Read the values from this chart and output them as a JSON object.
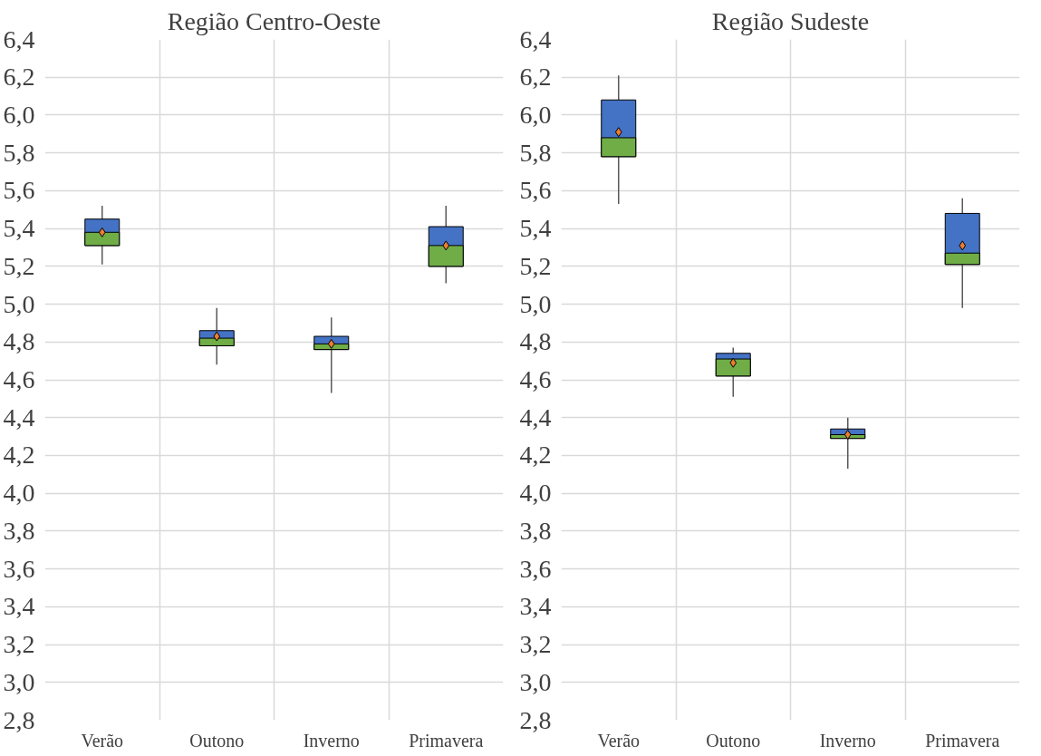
{
  "chart_data": [
    {
      "type": "box",
      "title": "Região Centro-Oeste",
      "categories": [
        "Verão",
        "Outono",
        "Inverno",
        "Primavera"
      ],
      "series": [
        {
          "color": "#4472c4",
          "boxes": [
            {
              "low": 5.21,
              "q1": 5.31,
              "median": 5.38,
              "q3": 5.45,
              "high": 5.52
            },
            {
              "low": 4.68,
              "q1": 4.78,
              "median": 4.82,
              "q3": 4.86,
              "high": 4.98
            },
            {
              "low": 4.53,
              "q1": 4.76,
              "median": 4.79,
              "q3": 4.83,
              "high": 4.93
            },
            {
              "low": 5.11,
              "q1": 5.2,
              "median": 5.31,
              "q3": 5.41,
              "high": 5.52
            }
          ]
        },
        {
          "type": "scatter",
          "color": "#ed7d31",
          "x": [
            "Verão",
            "Outono",
            "Inverno",
            "Primavera"
          ],
          "values": [
            5.38,
            4.83,
            4.79,
            5.31
          ]
        }
      ],
      "ylim": [
        2.8,
        6.4
      ],
      "yticks": [
        {
          "value": 2.8,
          "label": "2,8"
        },
        {
          "value": 3.0,
          "label": "3,0"
        },
        {
          "value": 3.2,
          "label": "3,2"
        },
        {
          "value": 3.4,
          "label": "3,4"
        },
        {
          "value": 3.6,
          "label": "3,6"
        },
        {
          "value": 3.8,
          "label": "3,8"
        },
        {
          "value": 4.0,
          "label": "4,0"
        },
        {
          "value": 4.2,
          "label": "4,2"
        },
        {
          "value": 4.4,
          "label": "4,4"
        },
        {
          "value": 4.6,
          "label": "4,6"
        },
        {
          "value": 4.8,
          "label": "4,8"
        },
        {
          "value": 5.0,
          "label": "5,0"
        },
        {
          "value": 5.2,
          "label": "5,2"
        },
        {
          "value": 5.4,
          "label": "5,4"
        },
        {
          "value": 5.6,
          "label": "5,6"
        },
        {
          "value": 5.8,
          "label": "5,8"
        },
        {
          "value": 6.0,
          "label": "6,0"
        },
        {
          "value": 6.2,
          "label": "6,2"
        },
        {
          "value": 6.4,
          "label": "6,4"
        }
      ],
      "grid": true,
      "marker": "diamond"
    },
    {
      "type": "box",
      "title": "Região Sudeste",
      "categories": [
        "Verão",
        "Outono",
        "Inverno",
        "Primavera"
      ],
      "series": [
        {
          "color": "#4472c4",
          "boxes": [
            {
              "low": 5.53,
              "q1": 5.78,
              "median": 5.88,
              "q3": 6.08,
              "high": 6.21
            },
            {
              "low": 4.51,
              "q1": 4.62,
              "median": 4.71,
              "q3": 4.74,
              "high": 4.77
            },
            {
              "low": 4.13,
              "q1": 4.29,
              "median": 4.31,
              "q3": 4.34,
              "high": 4.4
            },
            {
              "low": 4.98,
              "q1": 5.21,
              "median": 5.27,
              "q3": 5.48,
              "high": 5.56
            }
          ]
        },
        {
          "type": "scatter",
          "color": "#ed7d31",
          "x": [
            "Verão",
            "Outono",
            "Inverno",
            "Primavera"
          ],
          "values": [
            5.91,
            4.69,
            4.31,
            5.31
          ]
        }
      ],
      "ylim": [
        2.8,
        6.4
      ],
      "yticks": [
        {
          "value": 2.8,
          "label": "2,8"
        },
        {
          "value": 3.0,
          "label": "3,0"
        },
        {
          "value": 3.2,
          "label": "3,2"
        },
        {
          "value": 3.4,
          "label": "3,4"
        },
        {
          "value": 3.6,
          "label": "3,6"
        },
        {
          "value": 3.8,
          "label": "3,8"
        },
        {
          "value": 4.0,
          "label": "4,0"
        },
        {
          "value": 4.2,
          "label": "4,2"
        },
        {
          "value": 4.4,
          "label": "4,4"
        },
        {
          "value": 4.6,
          "label": "4,6"
        },
        {
          "value": 4.8,
          "label": "4,8"
        },
        {
          "value": 5.0,
          "label": "5,0"
        },
        {
          "value": 5.2,
          "label": "5,2"
        },
        {
          "value": 5.4,
          "label": "5,4"
        },
        {
          "value": 5.6,
          "label": "5,6"
        },
        {
          "value": 5.8,
          "label": "5,8"
        },
        {
          "value": 6.0,
          "label": "6,0"
        },
        {
          "value": 6.2,
          "label": "6,2"
        },
        {
          "value": 6.4,
          "label": "6,4"
        }
      ],
      "grid": true,
      "marker": "diamond"
    }
  ]
}
